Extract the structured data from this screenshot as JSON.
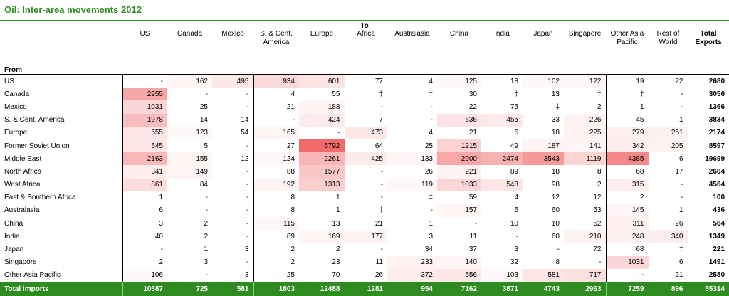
{
  "title": "Oil: Inter-area movements 2012",
  "to_label": "To",
  "from_label": "From",
  "heat_color": "#f26b6b",
  "header_color": "#2e8b1f",
  "columns": [
    "US",
    "Canada",
    "Mexico",
    "S. & Cent. America",
    "Europe",
    "Africa",
    "Australasia",
    "China",
    "India",
    "Japan",
    "Singapore",
    "Other Asia Pacific",
    "Rest of World",
    "Total Exports"
  ],
  "rows": [
    {
      "label": "US",
      "values": [
        "-",
        "162",
        "495",
        "934",
        "601",
        "77",
        "4",
        "125",
        "18",
        "102",
        "122",
        "19",
        "22"
      ],
      "total": "2680"
    },
    {
      "label": "Canada",
      "values": [
        "2955",
        "-",
        "-",
        "4",
        "55",
        "‡",
        "‡",
        "30",
        "‡",
        "13",
        "‡",
        "‡",
        "-"
      ],
      "total": "3056"
    },
    {
      "label": "Mexico",
      "values": [
        "1031",
        "25",
        "-",
        "21",
        "188",
        "-",
        "-",
        "22",
        "75",
        "‡",
        "2",
        "1",
        "-"
      ],
      "total": "1366"
    },
    {
      "label": "S. & Cent. America",
      "values": [
        "1978",
        "14",
        "14",
        "-",
        "424",
        "7",
        "-",
        "636",
        "455",
        "33",
        "226",
        "45",
        "1"
      ],
      "total": "3834"
    },
    {
      "label": "Europe",
      "values": [
        "555",
        "123",
        "54",
        "165",
        "-",
        "473",
        "4",
        "21",
        "6",
        "18",
        "225",
        "279",
        "251"
      ],
      "total": "2174"
    },
    {
      "label": "Former Soviet Union",
      "values": [
        "545",
        "5",
        "-",
        "27",
        "5792",
        "64",
        "25",
        "1215",
        "49",
        "187",
        "141",
        "342",
        "205"
      ],
      "total": "8597"
    },
    {
      "label": "Middle East",
      "values": [
        "2163",
        "155",
        "12",
        "124",
        "2261",
        "425",
        "133",
        "2900",
        "2474",
        "3543",
        "1119",
        "4385",
        "6"
      ],
      "total": "19699"
    },
    {
      "label": "North Africa",
      "values": [
        "341",
        "149",
        "-",
        "88",
        "1577",
        "-",
        "26",
        "221",
        "89",
        "18",
        "8",
        "68",
        "17"
      ],
      "total": "2604"
    },
    {
      "label": "West Africa",
      "values": [
        "861",
        "84",
        "-",
        "192",
        "1313",
        "-",
        "119",
        "1033",
        "548",
        "98",
        "2",
        "315",
        "-"
      ],
      "total": "4564"
    },
    {
      "label": "East & Southern Africa",
      "values": [
        "1",
        "-",
        "-",
        "8",
        "1",
        "-",
        "‡",
        "59",
        "4",
        "12",
        "12",
        "2",
        "-"
      ],
      "total": "100"
    },
    {
      "label": "Australasia",
      "values": [
        "6",
        "-",
        "-",
        "8",
        "1",
        "‡",
        "-",
        "157",
        "5",
        "60",
        "53",
        "145",
        "1"
      ],
      "total": "436"
    },
    {
      "label": "China",
      "values": [
        "3",
        "2",
        "-",
        "115",
        "13",
        "21",
        "1",
        "-",
        "10",
        "10",
        "52",
        "311",
        "26"
      ],
      "total": "564"
    },
    {
      "label": "India",
      "values": [
        "40",
        "2",
        "-",
        "89",
        "169",
        "177",
        "3",
        "11",
        "-",
        "60",
        "210",
        "248",
        "340"
      ],
      "total": "1349"
    },
    {
      "label": "Japan",
      "values": [
        "-",
        "1",
        "3",
        "2",
        "2",
        "-",
        "34",
        "37",
        "3",
        "-",
        "72",
        "68",
        "‡"
      ],
      "total": "221"
    },
    {
      "label": "Singapore",
      "values": [
        "2",
        "3",
        "-",
        "2",
        "23",
        "11",
        "233",
        "140",
        "32",
        "8",
        "-",
        "1031",
        "6"
      ],
      "total": "1491"
    },
    {
      "label": "Other Asia Pacific",
      "values": [
        "106",
        "-",
        "3",
        "25",
        "70",
        "26",
        "372",
        "556",
        "103",
        "581",
        "717",
        "-",
        "21"
      ],
      "total": "2580"
    }
  ],
  "imports": {
    "label": "Total imports",
    "values": [
      "10587",
      "725",
      "581",
      "1803",
      "12488",
      "1281",
      "954",
      "7162",
      "3871",
      "4743",
      "2963",
      "7259",
      "896"
    ],
    "total": "55314"
  }
}
